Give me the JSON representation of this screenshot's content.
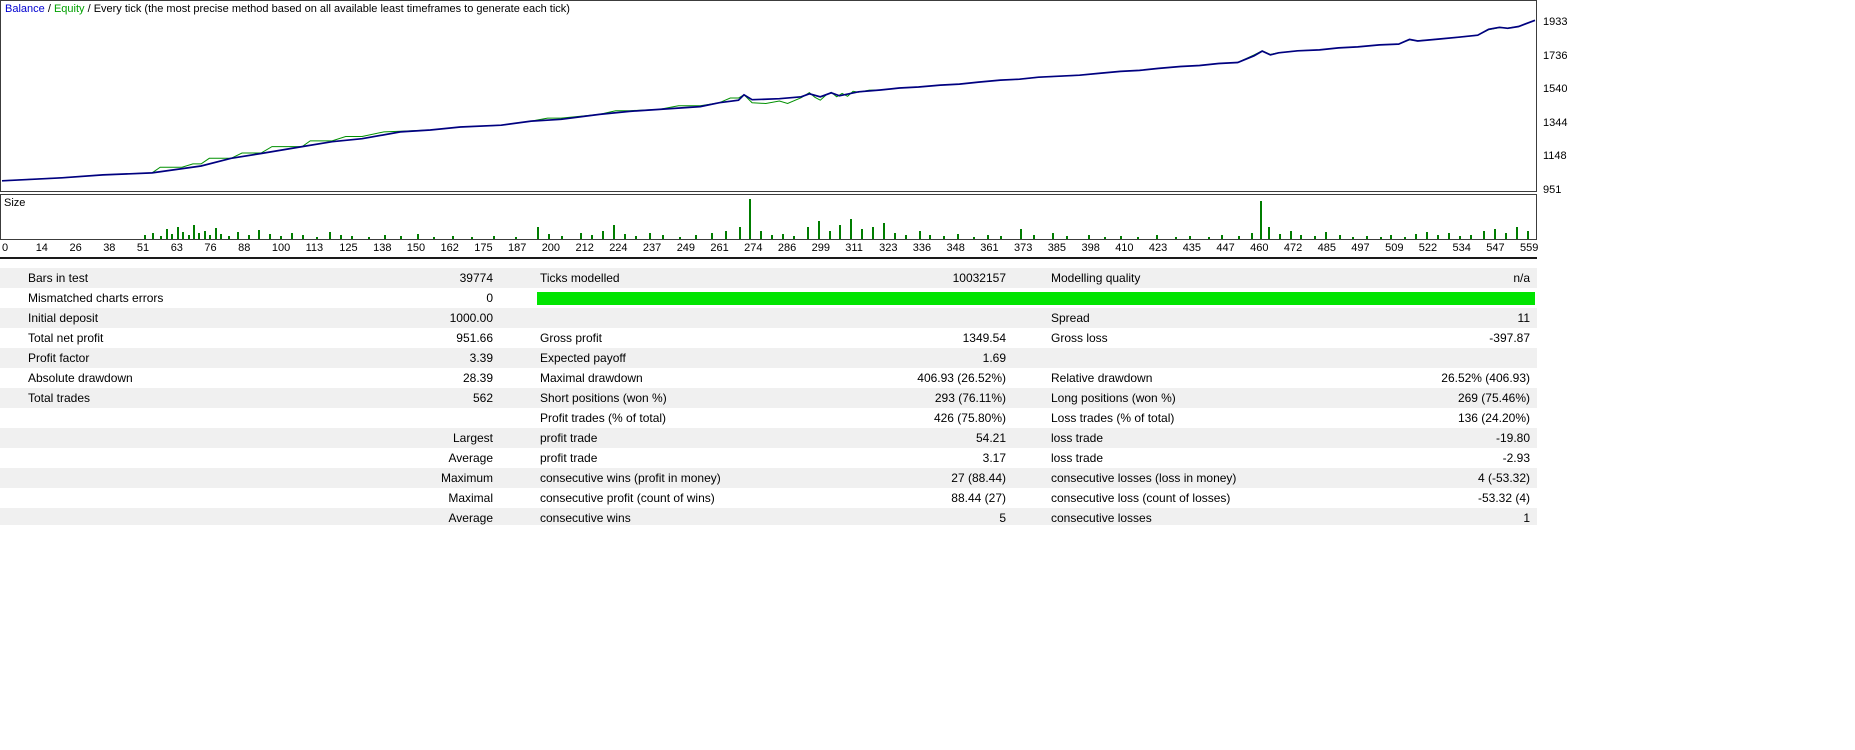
{
  "legend": {
    "balance_label": "Balance",
    "separator": " / ",
    "equity_label": "Equity",
    "model_label": "Every tick (the most precise method based on all available least timeframes to generate each tick)"
  },
  "colors": {
    "balance": "#000080",
    "equity": "#009000",
    "size_bar": "#007d00",
    "quality_bar": "#00e400"
  },
  "chart_data": {
    "type": "line",
    "title": "Balance / Equity tester graph",
    "trade_max": 562,
    "value_min": 939,
    "value_max": 2061,
    "y_ticks": [
      1933,
      1736,
      1540,
      1344,
      1148,
      951
    ],
    "x_ticks": [
      "0",
      "14",
      "26",
      "38",
      "51",
      "63",
      "76",
      "88",
      "100",
      "113",
      "125",
      "138",
      "150",
      "162",
      "175",
      "187",
      "200",
      "212",
      "224",
      "237",
      "249",
      "261",
      "274",
      "286",
      "299",
      "311",
      "323",
      "336",
      "348",
      "361",
      "373",
      "385",
      "398",
      "410",
      "423",
      "435",
      "447",
      "460",
      "472",
      "485",
      "497",
      "509",
      "522",
      "534",
      "547",
      "559"
    ],
    "series": [
      {
        "name": "Equity",
        "color_key": "equity",
        "points": [
          [
            0,
            994
          ],
          [
            22,
            1012
          ],
          [
            37,
            1029
          ],
          [
            55,
            1041
          ],
          [
            58,
            1075
          ],
          [
            66,
            1075
          ],
          [
            70,
            1095
          ],
          [
            73,
            1095
          ],
          [
            76,
            1128
          ],
          [
            84,
            1128
          ],
          [
            88,
            1160
          ],
          [
            95,
            1160
          ],
          [
            99,
            1198
          ],
          [
            110,
            1198
          ],
          [
            113,
            1232
          ],
          [
            121,
            1232
          ],
          [
            126,
            1258
          ],
          [
            132,
            1258
          ],
          [
            140,
            1286
          ],
          [
            146,
            1290
          ],
          [
            157,
            1297
          ],
          [
            168,
            1315
          ],
          [
            183,
            1326
          ],
          [
            194,
            1350
          ],
          [
            200,
            1368
          ],
          [
            205,
            1368
          ],
          [
            219,
            1390
          ],
          [
            225,
            1412
          ],
          [
            230,
            1412
          ],
          [
            241,
            1420
          ],
          [
            248,
            1442
          ],
          [
            256,
            1442
          ],
          [
            263,
            1460
          ],
          [
            267,
            1488
          ],
          [
            270,
            1488
          ],
          [
            272,
            1507
          ],
          [
            275,
            1460
          ],
          [
            280,
            1455
          ],
          [
            285,
            1470
          ],
          [
            288,
            1455
          ],
          [
            293,
            1490
          ],
          [
            296,
            1520
          ],
          [
            298,
            1492
          ],
          [
            300,
            1475
          ],
          [
            302,
            1505
          ],
          [
            304,
            1522
          ],
          [
            306,
            1495
          ],
          [
            308,
            1515
          ],
          [
            310,
            1498
          ],
          [
            312,
            1528
          ],
          [
            314,
            1522
          ],
          [
            318,
            1535
          ],
          [
            322,
            1536
          ],
          [
            329,
            1548
          ],
          [
            336,
            1554
          ],
          [
            344,
            1565
          ],
          [
            351,
            1571
          ],
          [
            358,
            1583
          ],
          [
            366,
            1595
          ],
          [
            373,
            1600
          ],
          [
            380,
            1612
          ],
          [
            395,
            1624
          ],
          [
            402,
            1635
          ],
          [
            410,
            1647
          ],
          [
            417,
            1653
          ],
          [
            424,
            1665
          ],
          [
            432,
            1676
          ],
          [
            439,
            1682
          ],
          [
            446,
            1694
          ],
          [
            453,
            1700
          ],
          [
            459,
            1745
          ],
          [
            462,
            1770
          ],
          [
            465,
            1748
          ],
          [
            468,
            1758
          ],
          [
            475,
            1770
          ],
          [
            483,
            1775
          ],
          [
            490,
            1787
          ],
          [
            497,
            1793
          ],
          [
            505,
            1805
          ],
          [
            512,
            1810
          ],
          [
            516,
            1835
          ],
          [
            519,
            1830
          ],
          [
            527,
            1840
          ],
          [
            534,
            1851
          ],
          [
            541,
            1863
          ],
          [
            545,
            1895
          ],
          [
            549,
            1908
          ],
          [
            552,
            1906
          ],
          [
            556,
            1915
          ],
          [
            562,
            1952
          ]
        ]
      },
      {
        "name": "Balance",
        "color_key": "balance",
        "points": [
          [
            0,
            994
          ],
          [
            22,
            1012
          ],
          [
            37,
            1029
          ],
          [
            55,
            1041
          ],
          [
            73,
            1082
          ],
          [
            84,
            1128
          ],
          [
            95,
            1157
          ],
          [
            110,
            1198
          ],
          [
            121,
            1227
          ],
          [
            132,
            1245
          ],
          [
            146,
            1286
          ],
          [
            157,
            1297
          ],
          [
            168,
            1315
          ],
          [
            183,
            1326
          ],
          [
            194,
            1350
          ],
          [
            205,
            1361
          ],
          [
            219,
            1390
          ],
          [
            230,
            1408
          ],
          [
            241,
            1420
          ],
          [
            256,
            1437
          ],
          [
            263,
            1460
          ],
          [
            270,
            1475
          ],
          [
            272,
            1507
          ],
          [
            275,
            1478
          ],
          [
            285,
            1484
          ],
          [
            293,
            1495
          ],
          [
            296,
            1513
          ],
          [
            300,
            1495
          ],
          [
            304,
            1519
          ],
          [
            307,
            1501
          ],
          [
            314,
            1525
          ],
          [
            322,
            1536
          ],
          [
            329,
            1548
          ],
          [
            336,
            1554
          ],
          [
            344,
            1565
          ],
          [
            351,
            1571
          ],
          [
            358,
            1583
          ],
          [
            366,
            1595
          ],
          [
            373,
            1600
          ],
          [
            380,
            1612
          ],
          [
            395,
            1624
          ],
          [
            402,
            1635
          ],
          [
            410,
            1647
          ],
          [
            417,
            1653
          ],
          [
            424,
            1665
          ],
          [
            432,
            1676
          ],
          [
            439,
            1682
          ],
          [
            446,
            1694
          ],
          [
            453,
            1700
          ],
          [
            459,
            1740
          ],
          [
            462,
            1768
          ],
          [
            465,
            1745
          ],
          [
            468,
            1758
          ],
          [
            475,
            1770
          ],
          [
            483,
            1775
          ],
          [
            490,
            1787
          ],
          [
            497,
            1793
          ],
          [
            505,
            1805
          ],
          [
            512,
            1810
          ],
          [
            516,
            1838
          ],
          [
            519,
            1828
          ],
          [
            527,
            1840
          ],
          [
            534,
            1851
          ],
          [
            541,
            1863
          ],
          [
            545,
            1898
          ],
          [
            549,
            1910
          ],
          [
            552,
            1904
          ],
          [
            556,
            1915
          ],
          [
            562,
            1952
          ]
        ]
      }
    ],
    "size": {
      "label": "Size",
      "bars": [
        [
          52,
          0.1
        ],
        [
          55,
          0.15
        ],
        [
          58,
          0.08
        ],
        [
          60,
          0.25
        ],
        [
          62,
          0.12
        ],
        [
          64,
          0.3
        ],
        [
          66,
          0.18
        ],
        [
          68,
          0.1
        ],
        [
          70,
          0.35
        ],
        [
          72,
          0.15
        ],
        [
          74,
          0.2
        ],
        [
          76,
          0.1
        ],
        [
          78,
          0.28
        ],
        [
          80,
          0.12
        ],
        [
          83,
          0.08
        ],
        [
          86,
          0.18
        ],
        [
          90,
          0.1
        ],
        [
          94,
          0.22
        ],
        [
          98,
          0.12
        ],
        [
          102,
          0.08
        ],
        [
          106,
          0.15
        ],
        [
          110,
          0.1
        ],
        [
          115,
          0.06
        ],
        [
          120,
          0.18
        ],
        [
          124,
          0.1
        ],
        [
          128,
          0.08
        ],
        [
          134,
          0.05
        ],
        [
          140,
          0.1
        ],
        [
          146,
          0.08
        ],
        [
          152,
          0.12
        ],
        [
          158,
          0.06
        ],
        [
          165,
          0.08
        ],
        [
          172,
          0.05
        ],
        [
          180,
          0.08
        ],
        [
          188,
          0.06
        ],
        [
          196,
          0.3
        ],
        [
          200,
          0.12
        ],
        [
          205,
          0.08
        ],
        [
          212,
          0.15
        ],
        [
          216,
          0.1
        ],
        [
          220,
          0.2
        ],
        [
          224,
          0.35
        ],
        [
          228,
          0.12
        ],
        [
          232,
          0.08
        ],
        [
          237,
          0.15
        ],
        [
          242,
          0.1
        ],
        [
          248,
          0.06
        ],
        [
          254,
          0.1
        ],
        [
          260,
          0.15
        ],
        [
          265,
          0.2
        ],
        [
          270,
          0.3
        ],
        [
          274,
          1.0
        ],
        [
          278,
          0.2
        ],
        [
          282,
          0.1
        ],
        [
          286,
          0.12
        ],
        [
          290,
          0.08
        ],
        [
          295,
          0.3
        ],
        [
          299,
          0.45
        ],
        [
          303,
          0.2
        ],
        [
          307,
          0.35
        ],
        [
          311,
          0.5
        ],
        [
          315,
          0.25
        ],
        [
          319,
          0.3
        ],
        [
          323,
          0.4
        ],
        [
          327,
          0.15
        ],
        [
          331,
          0.1
        ],
        [
          336,
          0.2
        ],
        [
          340,
          0.1
        ],
        [
          345,
          0.08
        ],
        [
          350,
          0.12
        ],
        [
          356,
          0.06
        ],
        [
          361,
          0.1
        ],
        [
          366,
          0.08
        ],
        [
          373,
          0.25
        ],
        [
          378,
          0.1
        ],
        [
          385,
          0.15
        ],
        [
          390,
          0.08
        ],
        [
          398,
          0.1
        ],
        [
          404,
          0.06
        ],
        [
          410,
          0.08
        ],
        [
          416,
          0.05
        ],
        [
          423,
          0.1
        ],
        [
          430,
          0.06
        ],
        [
          435,
          0.08
        ],
        [
          442,
          0.05
        ],
        [
          447,
          0.1
        ],
        [
          453,
          0.08
        ],
        [
          458,
          0.15
        ],
        [
          461,
          0.95
        ],
        [
          464,
          0.3
        ],
        [
          468,
          0.12
        ],
        [
          472,
          0.2
        ],
        [
          476,
          0.1
        ],
        [
          481,
          0.08
        ],
        [
          485,
          0.18
        ],
        [
          490,
          0.1
        ],
        [
          495,
          0.06
        ],
        [
          500,
          0.08
        ],
        [
          505,
          0.05
        ],
        [
          509,
          0.1
        ],
        [
          514,
          0.06
        ],
        [
          518,
          0.12
        ],
        [
          522,
          0.18
        ],
        [
          526,
          0.1
        ],
        [
          530,
          0.15
        ],
        [
          534,
          0.08
        ],
        [
          538,
          0.1
        ],
        [
          543,
          0.2
        ],
        [
          547,
          0.25
        ],
        [
          551,
          0.15
        ],
        [
          555,
          0.3
        ],
        [
          559,
          0.2
        ]
      ]
    }
  },
  "table": {
    "rows": [
      {
        "cells": [
          "Bars in test",
          "39774",
          "Ticks modelled",
          "10032157",
          "Modelling quality",
          "n/a"
        ]
      },
      {
        "cells": [
          "Mismatched charts errors",
          "0"
        ],
        "quality_bar": true
      },
      {
        "cells": [
          "Initial deposit",
          "1000.00",
          "",
          "",
          "Spread",
          "11"
        ]
      },
      {
        "cells": [
          "Total net profit",
          "951.66",
          "Gross profit",
          "1349.54",
          "Gross loss",
          "-397.87"
        ]
      },
      {
        "cells": [
          "Profit factor",
          "3.39",
          "Expected payoff",
          "1.69",
          "",
          ""
        ]
      },
      {
        "cells": [
          "Absolute drawdown",
          "28.39",
          "Maximal drawdown",
          "406.93 (26.52%)",
          "Relative drawdown",
          "26.52% (406.93)"
        ]
      },
      {
        "cells": [
          "Total trades",
          "562",
          "Short positions (won %)",
          "293 (76.11%)",
          "Long positions (won %)",
          "269 (75.46%)"
        ]
      },
      {
        "cells": [
          "",
          "",
          "Profit trades (% of total)",
          "426 (75.80%)",
          "Loss trades (% of total)",
          "136 (24.20%)"
        ]
      },
      {
        "cells": [
          "",
          "Largest",
          "profit trade",
          "54.21",
          "loss trade",
          "-19.80"
        ]
      },
      {
        "cells": [
          "",
          "Average",
          "profit trade",
          "3.17",
          "loss trade",
          "-2.93"
        ]
      },
      {
        "cells": [
          "",
          "Maximum",
          "consecutive wins (profit in money)",
          "27 (88.44)",
          "consecutive losses (loss in money)",
          "4 (-53.32)"
        ]
      },
      {
        "cells": [
          "",
          "Maximal",
          "consecutive profit (count of wins)",
          "88.44 (27)",
          "consecutive loss (count of losses)",
          "-53.32 (4)"
        ]
      },
      {
        "cells": [
          "",
          "Average",
          "consecutive wins",
          "5",
          "consecutive losses",
          "1"
        ]
      }
    ]
  }
}
